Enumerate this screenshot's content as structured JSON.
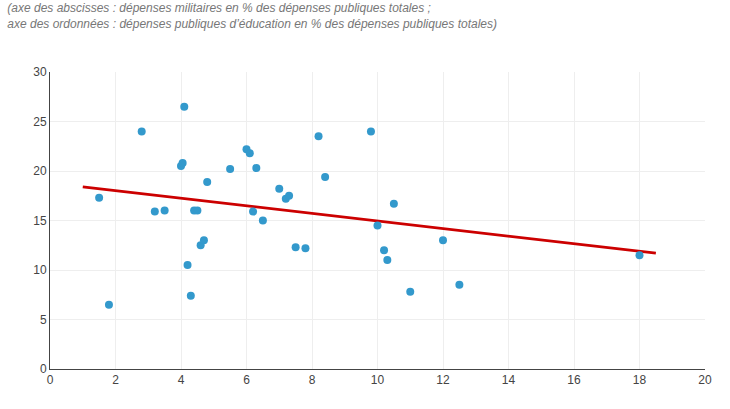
{
  "chart_data": {
    "type": "scatter",
    "subtitle": [
      "(axe des abscisses : dépenses militaires en % des dépenses publiques totales ;",
      "axe des ordonnées : dépenses publiques d’éducation en % des dépenses publiques totales)"
    ],
    "series": [
      {
        "type": "scatter",
        "color": "#3399CC",
        "x": [
          1.5,
          1.8,
          2.8,
          3.2,
          3.5,
          4.0,
          4.05,
          4.1,
          4.2,
          4.3,
          4.4,
          4.5,
          4.6,
          4.7,
          4.8,
          5.5,
          6.0,
          6.1,
          6.2,
          6.3,
          6.5,
          7.0,
          7.2,
          7.3,
          7.5,
          7.8,
          8.2,
          8.4,
          9.8,
          10.0,
          10.2,
          10.3,
          10.5,
          11.0,
          12.0,
          12.5,
          18.0
        ],
        "values": [
          17.3,
          6.5,
          24.0,
          15.9,
          16.0,
          20.5,
          20.8,
          26.5,
          10.5,
          7.4,
          16.0,
          16.0,
          12.5,
          13.0,
          18.9,
          20.2,
          22.2,
          21.8,
          15.9,
          20.3,
          15.0,
          18.2,
          17.2,
          17.5,
          12.3,
          12.2,
          23.5,
          19.4,
          24.0,
          14.5,
          12.0,
          11.0,
          16.7,
          7.8,
          13.0,
          8.5,
          11.5
        ]
      },
      {
        "type": "line",
        "color": "#CC0000",
        "x": [
          1.0,
          18.5
        ],
        "values": [
          18.4,
          11.7
        ]
      }
    ],
    "xlim": [
      0,
      20
    ],
    "ylim": [
      0,
      30
    ],
    "xticks": [
      0,
      2,
      4,
      6,
      8,
      10,
      12,
      14,
      16,
      18,
      20
    ],
    "yticks": [
      0,
      5,
      10,
      15,
      20,
      25,
      30
    ],
    "grid": true
  }
}
